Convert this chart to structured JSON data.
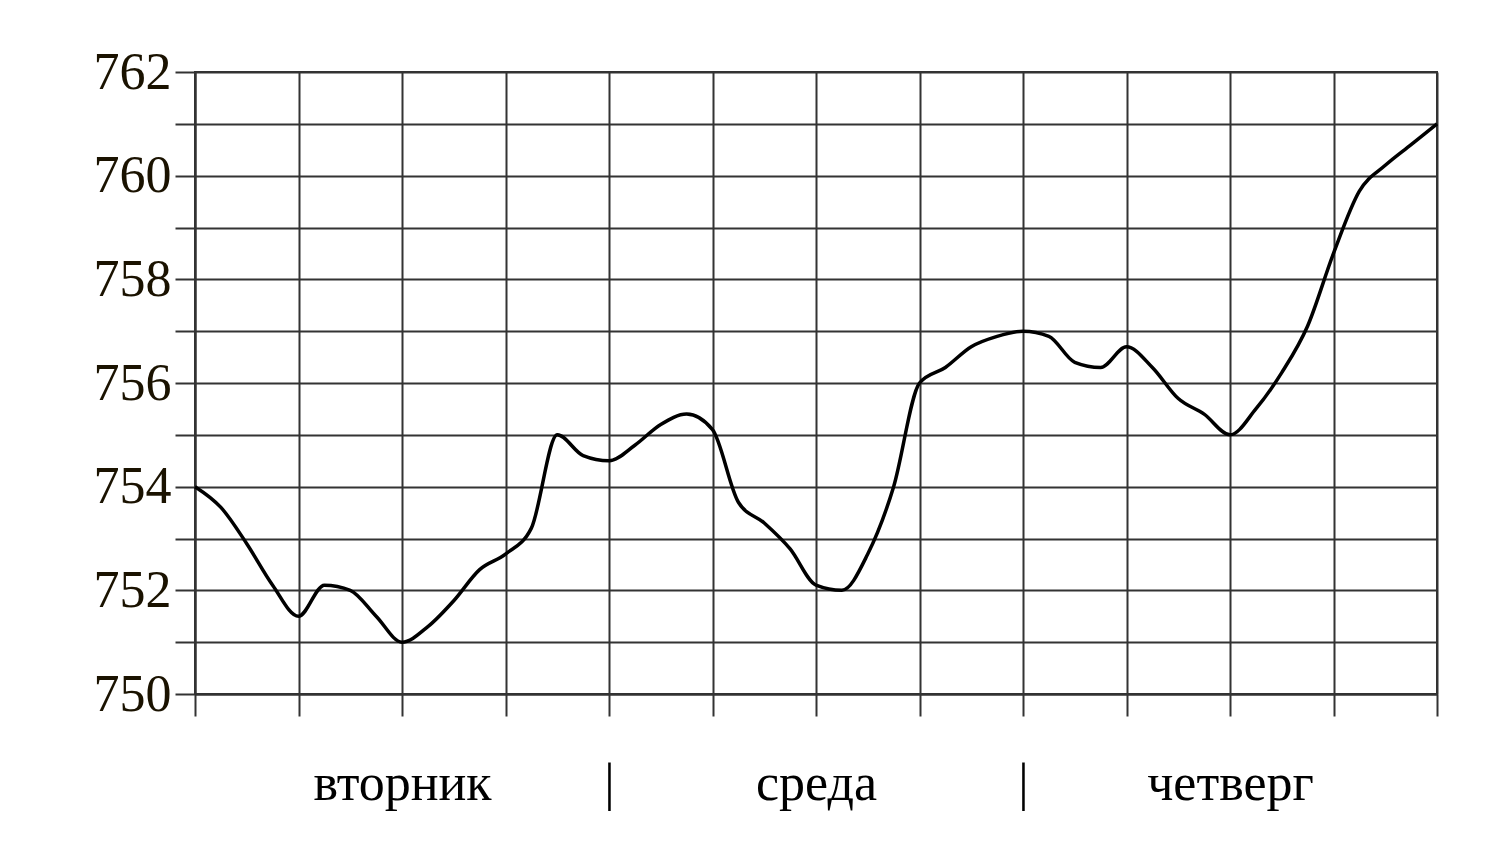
{
  "chart_data": {
    "type": "line",
    "categories": [
      null,
      null,
      null,
      null,
      null,
      null,
      null,
      null,
      "вторник",
      null,
      null,
      null,
      null,
      null,
      null,
      null,
      "|",
      null,
      null,
      null,
      null,
      null,
      null,
      null,
      "среда",
      null,
      null,
      null,
      null,
      null,
      null,
      null,
      "|",
      null,
      null,
      null,
      null,
      null,
      null,
      null,
      "четверг",
      null,
      null,
      null,
      null,
      null,
      null,
      null,
      null
    ],
    "series": [
      {
        "color": "#000000",
        "values": [
          754.0,
          753.6,
          752.9,
          752.1,
          751.5,
          752.1,
          752.0,
          751.5,
          751.0,
          751.3,
          751.8,
          752.4,
          752.7,
          753.2,
          755.0,
          754.6,
          754.5,
          754.8,
          755.2,
          755.4,
          755.1,
          753.7,
          753.3,
          752.8,
          752.1,
          752.0,
          752.7,
          754.0,
          756.0,
          756.3,
          756.7,
          756.9,
          757.0,
          756.9,
          756.4,
          756.3,
          756.7,
          756.3,
          755.7,
          755.4,
          755.0,
          755.5,
          756.2,
          757.1,
          758.5,
          759.7,
          760.2,
          760.6,
          761.0
        ]
      }
    ],
    "ylim": [
      750,
      762
    ],
    "yticks": [
      750,
      {
        "value": 751,
        "label": null
      },
      752,
      {
        "value": 753,
        "label": null
      },
      754,
      {
        "value": 755,
        "label": null
      },
      756,
      {
        "value": 757,
        "label": null
      },
      758,
      {
        "value": 759,
        "label": null
      },
      760,
      {
        "value": 761,
        "label": null
      },
      762
    ],
    "grid": true
  }
}
